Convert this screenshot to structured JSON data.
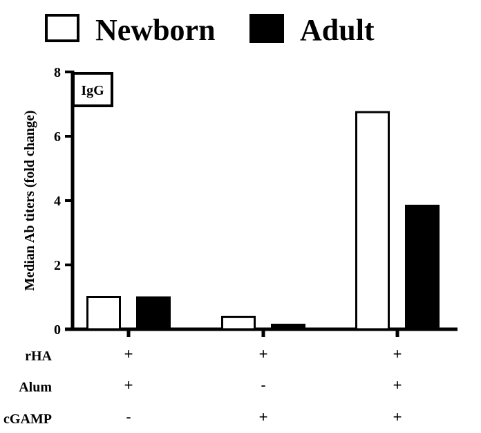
{
  "chart_data": {
    "type": "bar",
    "title": "",
    "panel_tag": "IgG",
    "ylabel": "Median Ab titers (fold change)",
    "xlabel": "",
    "ylim": [
      0,
      8
    ],
    "yticks": [
      0,
      2,
      4,
      6,
      8
    ],
    "ytick_labels": [
      "0",
      "2",
      "4",
      "6",
      "8"
    ],
    "grid": false,
    "legend_position": "top",
    "categories": [
      "rHA+Alum",
      "rHA+cGAMP",
      "rHA+Alum+cGAMP"
    ],
    "series": [
      {
        "name": "Newborn",
        "fill": "#ffffff",
        "stroke": "#000000",
        "values": [
          1.0,
          0.38,
          6.75
        ]
      },
      {
        "name": "Adult",
        "fill": "#000000",
        "stroke": "#000000",
        "values": [
          1.0,
          0.15,
          3.85
        ]
      }
    ],
    "condition_table": {
      "rows": [
        {
          "label": "rHA",
          "values": [
            "+",
            "+",
            "+"
          ]
        },
        {
          "label": "Alum",
          "values": [
            "+",
            "-",
            "+"
          ]
        },
        {
          "label": "cGAMP",
          "values": [
            "-",
            "+",
            "+"
          ]
        }
      ]
    }
  }
}
